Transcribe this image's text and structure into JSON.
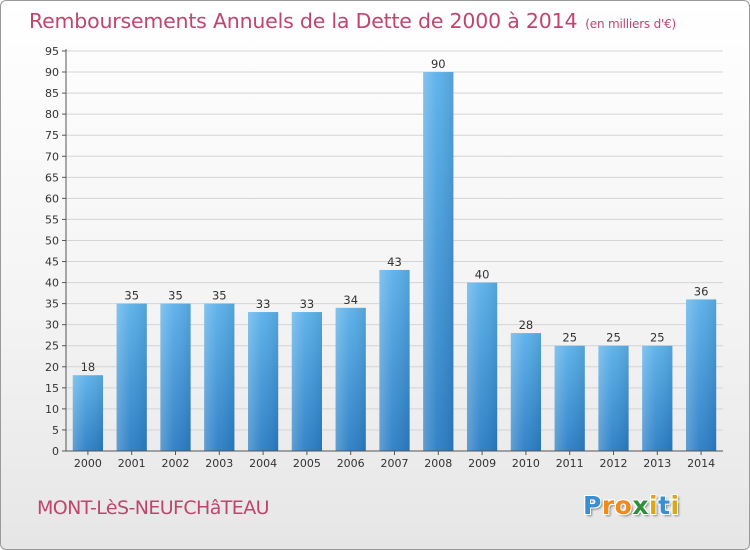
{
  "header": {
    "title": "Remboursements Annuels de la Dette de 2000 à 2014",
    "unit": "(en milliers d'€)"
  },
  "footer": {
    "city": "MONT-LèS-NEUFCHâTEAU",
    "logo": {
      "text": "Proxiti",
      "letters": [
        {
          "ch": "P",
          "color": "#3a8fd0"
        },
        {
          "ch": "r",
          "color": "#f08a1c"
        },
        {
          "ch": "o",
          "color": "#f08a1c"
        },
        {
          "ch": "x",
          "color": "#2f8f3a"
        },
        {
          "ch": "i",
          "color": "#d9a81a"
        },
        {
          "ch": "t",
          "color": "#3a8fd0"
        },
        {
          "ch": "i",
          "color": "#d9a81a"
        }
      ]
    }
  },
  "colors": {
    "title": "#c0456c",
    "bar_top": "#5ab0ea",
    "bar_bottom": "#2a7dc4",
    "axis": "#555555",
    "grid": "#d4d4d4"
  },
  "chart_data": {
    "type": "bar",
    "title": "Remboursements Annuels de la Dette de 2000 à 2014",
    "subtitle": "(en milliers d'€)",
    "categories": [
      "2000",
      "2001",
      "2002",
      "2003",
      "2004",
      "2005",
      "2006",
      "2007",
      "2008",
      "2009",
      "2010",
      "2011",
      "2012",
      "2013",
      "2014"
    ],
    "values": [
      18,
      35,
      35,
      35,
      33,
      33,
      34,
      43,
      90,
      40,
      28,
      25,
      25,
      25,
      36
    ],
    "ylim": [
      0,
      95
    ],
    "ytick_step": 5,
    "grid": true,
    "legend": "none"
  }
}
